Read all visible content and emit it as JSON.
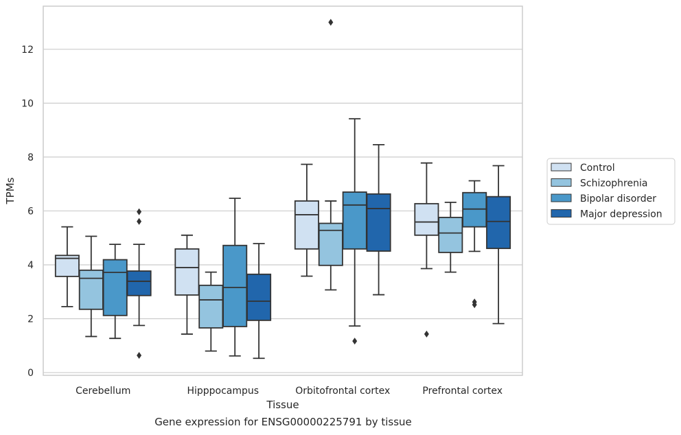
{
  "caption": "Gene expression for ENSG00000225791 by tissue",
  "chart_data": {
    "type": "box",
    "xlabel": "Tissue",
    "ylabel": "TPMs",
    "ylim": [
      -0.1,
      13.6
    ],
    "yticks": [
      0,
      2,
      4,
      6,
      8,
      10,
      12
    ],
    "grid": "horizontal",
    "legend_position": "right",
    "categories": [
      "Cerebellum",
      "Hipppocampus",
      "Orbitofrontal cortex",
      "Prefrontal cortex"
    ],
    "series": [
      {
        "name": "Control",
        "color": "#d0e1f2",
        "boxes": [
          {
            "whisker_low": 2.45,
            "q1": 3.57,
            "median": 4.24,
            "q3": 4.35,
            "whisker_high": 5.41,
            "outliers": []
          },
          {
            "whisker_low": 1.43,
            "q1": 2.88,
            "median": 3.9,
            "q3": 4.59,
            "whisker_high": 5.1,
            "outliers": []
          },
          {
            "whisker_low": 3.58,
            "q1": 4.59,
            "median": 5.86,
            "q3": 6.37,
            "whisker_high": 7.73,
            "outliers": []
          },
          {
            "whisker_low": 3.86,
            "q1": 5.1,
            "median": 5.59,
            "q3": 6.27,
            "whisker_high": 7.78,
            "outliers": [
              1.43
            ]
          }
        ]
      },
      {
        "name": "Schizophrenia",
        "color": "#94c4df",
        "boxes": [
          {
            "whisker_low": 1.34,
            "q1": 2.35,
            "median": 3.5,
            "q3": 3.8,
            "whisker_high": 5.06,
            "outliers": []
          },
          {
            "whisker_low": 0.8,
            "q1": 1.66,
            "median": 2.7,
            "q3": 3.24,
            "whisker_high": 3.73,
            "outliers": []
          },
          {
            "whisker_low": 3.07,
            "q1": 3.98,
            "median": 5.28,
            "q3": 5.54,
            "whisker_high": 6.37,
            "outliers": [
              13.0
            ]
          },
          {
            "whisker_low": 3.73,
            "q1": 4.46,
            "median": 5.18,
            "q3": 5.76,
            "whisker_high": 6.32,
            "outliers": []
          }
        ]
      },
      {
        "name": "Bipolar disorder",
        "color": "#4a98c9",
        "boxes": [
          {
            "whisker_low": 1.27,
            "q1": 2.12,
            "median": 3.72,
            "q3": 4.19,
            "whisker_high": 4.76,
            "outliers": []
          },
          {
            "whisker_low": 0.62,
            "q1": 1.71,
            "median": 3.16,
            "q3": 4.72,
            "whisker_high": 6.47,
            "outliers": []
          },
          {
            "whisker_low": 1.73,
            "q1": 4.59,
            "median": 6.22,
            "q3": 6.7,
            "whisker_high": 9.42,
            "outliers": [
              1.17
            ]
          },
          {
            "whisker_low": 4.5,
            "q1": 5.41,
            "median": 6.07,
            "q3": 6.68,
            "whisker_high": 7.12,
            "outliers": [
              2.52,
              2.62
            ]
          }
        ]
      },
      {
        "name": "Major depression",
        "color": "#2166ac",
        "boxes": [
          {
            "whisker_low": 1.75,
            "q1": 2.86,
            "median": 3.39,
            "q3": 3.77,
            "whisker_high": 4.76,
            "outliers": [
              0.64,
              5.61,
              5.97
            ]
          },
          {
            "whisker_low": 0.53,
            "q1": 1.94,
            "median": 2.65,
            "q3": 3.65,
            "whisker_high": 4.79,
            "outliers": []
          },
          {
            "whisker_low": 2.89,
            "q1": 4.51,
            "median": 6.09,
            "q3": 6.63,
            "whisker_high": 8.46,
            "outliers": []
          },
          {
            "whisker_low": 1.82,
            "q1": 4.61,
            "median": 5.61,
            "q3": 6.53,
            "whisker_high": 7.68,
            "outliers": []
          }
        ]
      }
    ]
  }
}
